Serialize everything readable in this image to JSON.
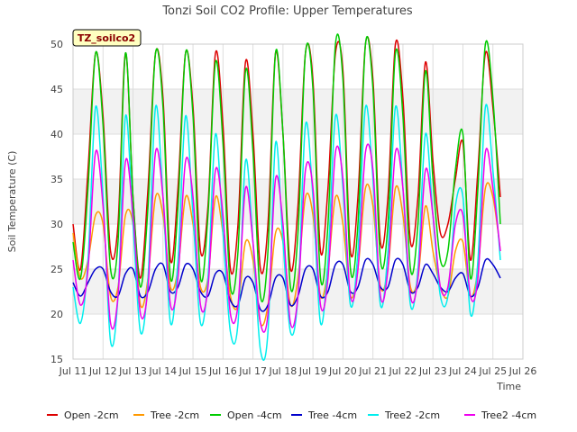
{
  "chart_data": {
    "type": "line",
    "title": "Tonzi Soil CO2 Profile: Upper Temperatures",
    "xlabel": "Time",
    "ylabel": "Soil Temperature (C)",
    "badge": "TZ_soilco2",
    "xlim": [
      11,
      26
    ],
    "ylim": [
      15,
      50
    ],
    "x_ticks": [
      11,
      12,
      13,
      14,
      15,
      16,
      17,
      18,
      19,
      20,
      21,
      22,
      23,
      24,
      25,
      26
    ],
    "x_tick_labels": [
      "Jul 11",
      "Jul 12",
      "Jul 13",
      "Jul 14",
      "Jul 15",
      "Jul 16",
      "Jul 17",
      "Jul 18",
      "Jul 19",
      "Jul 20",
      "Jul 21",
      "Jul 22",
      "Jul 23",
      "Jul 24",
      "Jul 25",
      "Jul 26"
    ],
    "y_ticks": [
      15,
      20,
      25,
      30,
      35,
      40,
      45,
      50
    ],
    "y_tick_labels": [
      "15",
      "20",
      "25",
      "30",
      "35",
      "40",
      "45",
      "50"
    ],
    "grid": true,
    "legend_position": "bottom",
    "x": [
      11.0,
      11.25,
      11.5,
      11.75,
      12.0,
      12.25,
      12.5,
      12.75,
      13.0,
      13.25,
      13.5,
      13.75,
      14.0,
      14.25,
      14.5,
      14.75,
      15.0,
      15.25,
      15.5,
      15.75,
      16.0,
      16.25,
      16.5,
      16.75,
      17.0,
      17.25,
      17.5,
      17.75,
      18.0,
      18.25,
      18.5,
      18.75,
      19.0,
      19.25,
      19.5,
      19.75,
      20.0,
      20.25,
      20.5,
      20.75,
      21.0,
      21.25,
      21.5,
      21.75,
      22.0,
      22.25,
      22.5,
      22.75,
      23.0,
      23.25,
      23.5,
      23.75,
      24.0,
      24.25,
      24.5,
      24.75,
      25.0,
      25.25
    ],
    "series": [
      {
        "name": "Open -2cm",
        "color": "#dd0000",
        "values": [
          30,
          25,
          36,
          49,
          42,
          27,
          30,
          49,
          33,
          24,
          34,
          49,
          44,
          26,
          34,
          49,
          43,
          27,
          32,
          49,
          41,
          25,
          30,
          48,
          40,
          25,
          30,
          49,
          40,
          25,
          32,
          49,
          46,
          27,
          34,
          49,
          47,
          27,
          33,
          50,
          46,
          28,
          33,
          50,
          44,
          28,
          33,
          48,
          37,
          29,
          30,
          35,
          39,
          26,
          36,
          49,
          43,
          33
        ]
      },
      {
        "name": "Tree -2cm",
        "color": "#ff9900",
        "values": [
          29,
          24,
          26,
          31,
          30,
          22,
          23,
          31,
          30,
          21,
          24,
          33,
          31,
          23,
          25,
          33,
          30,
          23,
          24,
          33,
          29,
          22,
          21,
          28,
          26,
          19,
          21,
          29,
          28,
          21,
          24,
          33,
          31,
          22,
          25,
          33,
          30,
          22,
          25,
          34,
          32,
          23,
          25,
          34,
          31,
          23,
          24,
          32,
          27,
          23,
          22,
          27,
          28,
          22,
          25,
          34,
          33,
          27
        ]
      },
      {
        "name": "Open -4cm",
        "color": "#00cc00",
        "values": [
          28,
          24,
          34,
          49,
          41,
          25,
          28,
          49,
          33,
          23,
          32,
          49,
          43,
          24,
          32,
          49,
          42,
          24,
          31,
          48,
          39,
          23,
          27,
          47,
          38,
          22,
          27,
          49,
          40,
          23,
          29,
          49,
          45,
          24,
          30,
          50,
          46,
          25,
          30,
          50,
          45,
          26,
          30,
          49,
          42,
          25,
          30,
          47,
          35,
          26,
          27,
          36,
          40,
          24,
          34,
          50,
          44,
          30
        ]
      },
      {
        "name": "Tree -4cm",
        "color": "#0000cc",
        "values": [
          23.5,
          22,
          23.5,
          25,
          25,
          22.5,
          22,
          24.5,
          25,
          22,
          22.5,
          25,
          25.5,
          22.5,
          23,
          25.5,
          25,
          22.5,
          22,
          24.5,
          24.5,
          21.5,
          21,
          24,
          23.5,
          20.5,
          21,
          24,
          24,
          21,
          22,
          25,
          25,
          22,
          22.5,
          25.5,
          25.5,
          22.5,
          23,
          26,
          25.5,
          23,
          23,
          26,
          25.5,
          22.5,
          23,
          25.5,
          24.5,
          23,
          22.5,
          24,
          24.5,
          22,
          23,
          26,
          25.5,
          24
        ]
      },
      {
        "name": "Tree2 -2cm",
        "color": "#00eeee",
        "values": [
          23,
          19,
          26,
          43,
          33,
          17,
          22,
          42,
          30,
          18,
          24,
          43,
          33,
          19,
          26,
          42,
          31,
          19,
          24,
          40,
          29,
          18,
          19,
          37,
          28,
          16,
          18,
          39,
          28,
          18,
          22,
          41,
          33,
          19,
          26,
          42,
          34,
          21,
          27,
          43,
          35,
          21,
          27,
          43,
          34,
          21,
          25,
          40,
          31,
          22,
          22,
          32,
          33,
          20,
          26,
          43,
          36,
          26
        ]
      },
      {
        "name": "Tree2 -4cm",
        "color": "#ee00ee",
        "values": [
          26,
          21,
          25,
          38,
          32,
          19,
          22,
          37,
          31,
          20,
          23,
          38,
          33,
          21,
          24,
          37,
          33,
          21,
          23,
          36,
          31,
          20,
          21,
          34,
          28,
          19,
          20,
          35,
          30,
          19,
          22,
          36,
          34,
          21,
          24,
          38,
          35,
          22,
          25,
          38,
          36,
          22,
          25,
          38,
          34,
          22,
          24,
          36,
          31,
          23,
          23,
          30,
          31,
          22,
          24,
          38,
          34,
          27
        ]
      }
    ]
  }
}
